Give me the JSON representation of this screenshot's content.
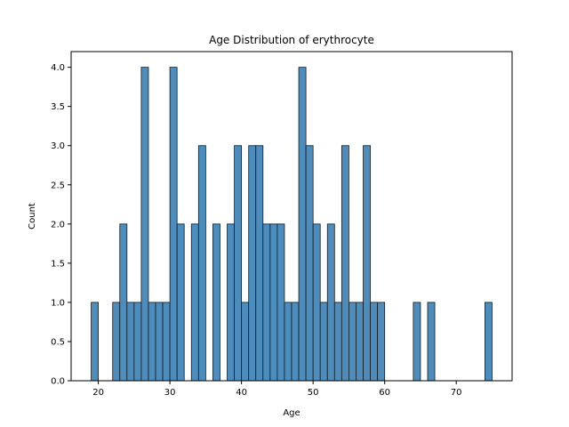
{
  "chart_data": {
    "type": "bar",
    "title": "Age Distribution of erythrocyte",
    "xlabel": "Age",
    "ylabel": "Count",
    "xlim": [
      16.2,
      77.8
    ],
    "ylim": [
      0,
      4.2
    ],
    "xticks": [
      20,
      30,
      40,
      50,
      60,
      70
    ],
    "yticks": [
      0.0,
      0.5,
      1.0,
      1.5,
      2.0,
      2.5,
      3.0,
      3.5,
      4.0
    ],
    "ytick_labels": [
      "0.0",
      "0.5",
      "1.0",
      "1.5",
      "2.0",
      "2.5",
      "3.0",
      "3.5",
      "4.0"
    ],
    "bin_start": 19.0,
    "bin_width": 1.0,
    "counts": [
      1,
      0,
      0,
      1,
      2,
      1,
      1,
      4,
      1,
      1,
      1,
      4,
      2,
      0,
      2,
      3,
      0,
      2,
      0,
      2,
      3,
      1,
      3,
      3,
      2,
      2,
      2,
      1,
      1,
      4,
      3,
      2,
      1,
      2,
      1,
      3,
      1,
      1,
      3,
      1,
      1,
      0,
      0,
      0,
      0,
      1,
      0,
      1,
      0,
      0,
      0,
      0,
      0,
      0,
      0,
      1
    ],
    "bar_color": "#4c8dbd",
    "edge_color": "#1a1a1a",
    "grid": false,
    "legend": "none"
  }
}
